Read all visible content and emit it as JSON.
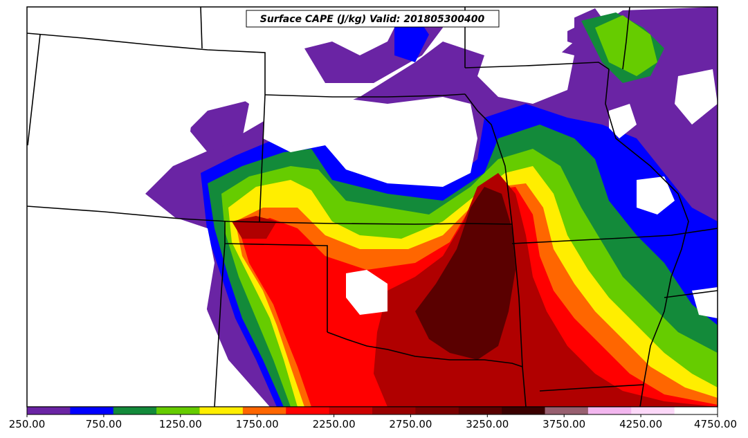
{
  "map": {
    "title": "Surface CAPE (J/kg) Valid: 201805300400",
    "colorbar": {
      "tick_labels": [
        "250.00",
        "750.00",
        "1250.00",
        "1750.00",
        "2250.00",
        "2750.00",
        "3250.00",
        "3750.00",
        "4250.00",
        "4750.00"
      ],
      "colors": [
        "#6a24a4",
        "#0000ff",
        "#138a3a",
        "#66cc00",
        "#ffee00",
        "#ff6600",
        "#ff0000",
        "#cc0000",
        "#990000",
        "#7a0000",
        "#5a0000",
        "#3a0000",
        "#986070",
        "#f2b6ee",
        "#fcd8f8",
        "#ffffff"
      ]
    },
    "palette": {
      "purple": "#6a24a4",
      "blue": "#0000ff",
      "green": "#138a3a",
      "lime": "#66cc00",
      "yellow": "#ffee00",
      "orange": "#ff6600",
      "red": "#ff0000",
      "darkred": "#b00000",
      "maroon": "#5a0000"
    }
  }
}
